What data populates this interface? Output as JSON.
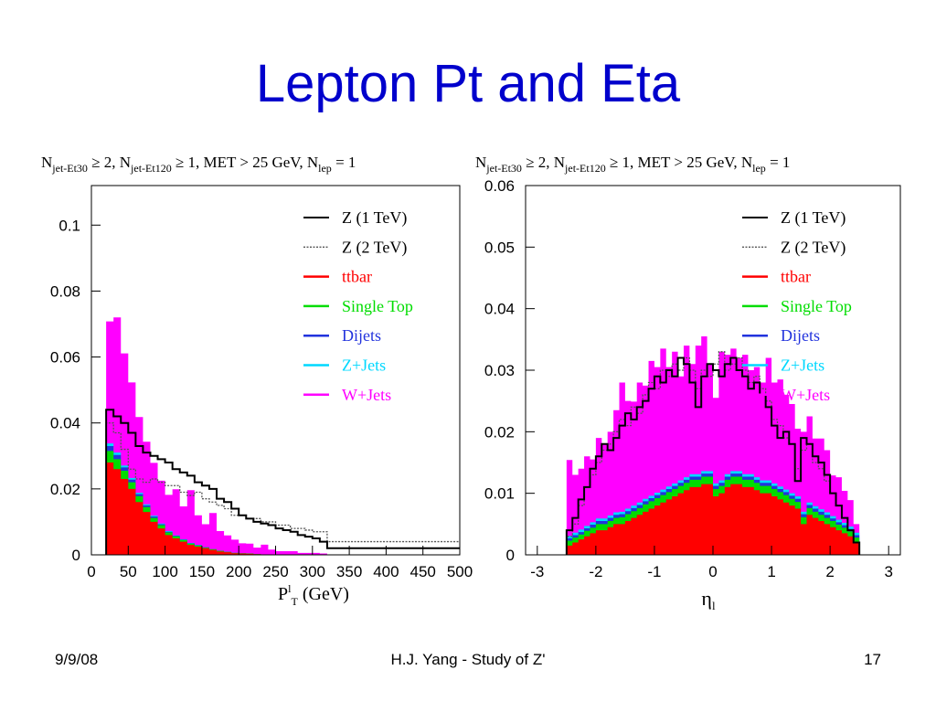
{
  "slide": {
    "title": "Lepton Pt and Eta",
    "footer_left": "9/9/08",
    "footer_center": "H.J. Yang - Study of Z'",
    "footer_right": "17"
  },
  "colors": {
    "title": "#0000cc",
    "z1": "#000000",
    "z2": "#555555",
    "ttbar": "#ff0000",
    "single_top": "#00dd00",
    "dijets": "#2233dd",
    "zjets": "#00d8ff",
    "wjets": "#ff00ff"
  },
  "chart_data": [
    {
      "type": "area",
      "header": {
        "main": "N",
        "sub1": "jet-Et30",
        "t1": " ≥ 2, N",
        "sub2": "jet-Et120",
        "t2": " ≥ 1, MET > 25 GeV, N",
        "sub3": "lep",
        "t3": " = 1"
      },
      "xlabel": {
        "main": "P",
        "sup": "l",
        "sub": "T",
        "rest": " (GeV)"
      },
      "ylabel": "",
      "xlim": [
        0,
        500
      ],
      "ylim": [
        0,
        0.112
      ],
      "xticks": [
        "0",
        "50",
        "100",
        "150",
        "200",
        "250",
        "300",
        "350",
        "400",
        "450",
        "500"
      ],
      "yticks": [
        "0",
        "0.02",
        "0.04",
        "0.06",
        "0.08",
        "0.1"
      ],
      "legend": [
        {
          "label": "Z (1 TeV)",
          "key": "z1",
          "style": "line"
        },
        {
          "label": "Z (2 TeV)",
          "key": "z2",
          "style": "dotted"
        },
        {
          "label": "ttbar",
          "key": "ttbar",
          "style": "fill"
        },
        {
          "label": "Single Top",
          "key": "single_top",
          "style": "fill"
        },
        {
          "label": "Dijets",
          "key": "dijets",
          "style": "fill"
        },
        {
          "label": "Z+Jets",
          "key": "zjets",
          "style": "fill"
        },
        {
          "label": "W+Jets",
          "key": "wjets",
          "style": "fill"
        }
      ],
      "x_edges_start": 20,
      "bin_width": 10,
      "stack": {
        "ttbar": [
          0.028,
          0.026,
          0.023,
          0.02,
          0.016,
          0.013,
          0.01,
          0.008,
          0.006,
          0.005,
          0.004,
          0.003,
          0.0025,
          0.002,
          0.0015,
          0.001,
          0.0008,
          0.0005,
          0.0004,
          0.0003,
          0.0002,
          0.0001,
          0.0001,
          0.0001,
          0.0001,
          0.0001,
          0.0001,
          0.0001,
          0.0001,
          0.0001
        ],
        "single_top": [
          0.0035,
          0.003,
          0.0025,
          0.002,
          0.0018,
          0.0015,
          0.0012,
          0.001,
          0.0008,
          0.0006,
          0.0005,
          0.0004,
          0.0003,
          0.0002,
          0.0002,
          0.0002,
          0.0001,
          0.0001,
          0.0001,
          0.0001,
          0,
          0,
          0,
          0,
          0,
          0,
          0,
          0,
          0,
          0
        ],
        "dijets": [
          0.0015,
          0.0013,
          0.001,
          0.0008,
          0.0006,
          0.0005,
          0.0004,
          0.0003,
          0.0002,
          0.0002,
          0.0001,
          0.0001,
          0.0001,
          0.0001,
          0,
          0,
          0,
          0,
          0,
          0,
          0,
          0,
          0,
          0,
          0,
          0,
          0,
          0,
          0,
          0
        ],
        "zjets": [
          0.0008,
          0.0007,
          0.0006,
          0.0005,
          0.0004,
          0.0003,
          0.0003,
          0.0002,
          0.0002,
          0.0001,
          0.0001,
          0.0001,
          0.0001,
          0,
          0,
          0,
          0,
          0,
          0,
          0,
          0,
          0,
          0,
          0,
          0,
          0,
          0,
          0,
          0,
          0
        ],
        "wjets": [
          0.037,
          0.041,
          0.034,
          0.029,
          0.023,
          0.019,
          0.016,
          0.013,
          0.011,
          0.014,
          0.01,
          0.016,
          0.009,
          0.007,
          0.011,
          0.006,
          0.005,
          0.004,
          0.003,
          0.003,
          0.002,
          0.003,
          0.0015,
          0.001,
          0.001,
          0.001,
          0.0005,
          0.0005,
          0.0005,
          0.0003
        ]
      },
      "overlays": {
        "z1": [
          0.044,
          0.042,
          0.04,
          0.037,
          0.033,
          0.031,
          0.03,
          0.029,
          0.028,
          0.026,
          0.025,
          0.024,
          0.022,
          0.021,
          0.02,
          0.017,
          0.016,
          0.014,
          0.012,
          0.011,
          0.01,
          0.0095,
          0.009,
          0.008,
          0.0075,
          0.007,
          0.006,
          0.0055,
          0.005,
          0.004
        ],
        "z2": [
          0.04,
          0.037,
          0.032,
          0.026,
          0.023,
          0.022,
          0.023,
          0.022,
          0.021,
          0.021,
          0.019,
          0.018,
          0.019,
          0.017,
          0.016,
          0.015,
          0.014,
          0.012,
          0.012,
          0.011,
          0.011,
          0.01,
          0.01,
          0.009,
          0.009,
          0.008,
          0.008,
          0.0075,
          0.007,
          0.007
        ]
      },
      "tail": {
        "z1_x_to": 500,
        "z1_y": 0.002,
        "z2_y": 0.004
      }
    },
    {
      "type": "area",
      "header": {
        "main": "N",
        "sub1": "jet-Et30",
        "t1": " ≥ 2, N",
        "sub2": "jet-Et120",
        "t2": " ≥ 1, MET > 25 GeV, N",
        "sub3": "lep",
        "t3": " = 1"
      },
      "xlabel": {
        "main": "η",
        "sub": "l"
      },
      "ylabel": "",
      "xlim": [
        -3.2,
        3.2
      ],
      "ylim": [
        0,
        0.06
      ],
      "xticks": [
        "-3",
        "-2",
        "-1",
        "0",
        "1",
        "2",
        "3"
      ],
      "yticks": [
        "0",
        "0.01",
        "0.02",
        "0.03",
        "0.04",
        "0.05",
        "0.06"
      ],
      "legend": [
        {
          "label": "Z (1 TeV)",
          "key": "z1",
          "style": "line"
        },
        {
          "label": "Z (2 TeV)",
          "key": "z2",
          "style": "dotted"
        },
        {
          "label": "ttbar",
          "key": "ttbar",
          "style": "fill"
        },
        {
          "label": "Single Top",
          "key": "single_top",
          "style": "fill"
        },
        {
          "label": "Dijets",
          "key": "dijets",
          "style": "fill"
        },
        {
          "label": "Z+Jets",
          "key": "zjets",
          "style": "fill"
        },
        {
          "label": "W+Jets",
          "key": "wjets",
          "style": "fill"
        }
      ],
      "x_edges_start": -2.5,
      "bin_width": 0.1,
      "stack": {
        "ttbar": [
          0.0015,
          0.002,
          0.0025,
          0.003,
          0.0035,
          0.004,
          0.004,
          0.0045,
          0.005,
          0.005,
          0.0055,
          0.006,
          0.0065,
          0.007,
          0.0075,
          0.008,
          0.0085,
          0.009,
          0.0095,
          0.01,
          0.0105,
          0.011,
          0.011,
          0.0115,
          0.0115,
          0.0095,
          0.01,
          0.011,
          0.0115,
          0.0115,
          0.011,
          0.011,
          0.0105,
          0.01,
          0.01,
          0.0095,
          0.009,
          0.0085,
          0.008,
          0.0075,
          0.005,
          0.0065,
          0.006,
          0.0055,
          0.005,
          0.0045,
          0.004,
          0.0035,
          0.003,
          0.002
        ],
        "single_top": [
          0.0008,
          0.0008,
          0.0008,
          0.0009,
          0.0009,
          0.001,
          0.001,
          0.001,
          0.001,
          0.0011,
          0.0011,
          0.0011,
          0.0011,
          0.0012,
          0.0012,
          0.0012,
          0.0012,
          0.0012,
          0.0012,
          0.0012,
          0.0012,
          0.0012,
          0.0012,
          0.0012,
          0.0012,
          0.0012,
          0.0012,
          0.0012,
          0.0012,
          0.0012,
          0.0012,
          0.0012,
          0.0012,
          0.0012,
          0.0012,
          0.0012,
          0.0012,
          0.0012,
          0.0011,
          0.0011,
          0.0011,
          0.0011,
          0.001,
          0.001,
          0.001,
          0.001,
          0.0009,
          0.0009,
          0.0008,
          0.0008
        ],
        "dijets": [
          0.0004,
          0.0004,
          0.0004,
          0.0004,
          0.0005,
          0.0005,
          0.0005,
          0.0005,
          0.0005,
          0.0005,
          0.0005,
          0.0005,
          0.0005,
          0.0005,
          0.0005,
          0.0005,
          0.0005,
          0.0005,
          0.0005,
          0.0005,
          0.0005,
          0.0005,
          0.0005,
          0.0005,
          0.0005,
          0.0005,
          0.0005,
          0.0005,
          0.0005,
          0.0005,
          0.0005,
          0.0005,
          0.0005,
          0.0005,
          0.0005,
          0.0005,
          0.0005,
          0.0005,
          0.0005,
          0.0005,
          0.0005,
          0.0005,
          0.0005,
          0.0005,
          0.0005,
          0.0004,
          0.0004,
          0.0004,
          0.0004,
          0.0004
        ],
        "zjets": [
          0.0004,
          0.0004,
          0.0004,
          0.0004,
          0.0004,
          0.0004,
          0.0004,
          0.0004,
          0.0004,
          0.0004,
          0.0004,
          0.0004,
          0.0004,
          0.0004,
          0.0004,
          0.0004,
          0.0004,
          0.0004,
          0.0004,
          0.0004,
          0.0004,
          0.0004,
          0.0004,
          0.0004,
          0.0004,
          0.0004,
          0.0004,
          0.0004,
          0.0004,
          0.0004,
          0.0004,
          0.0004,
          0.0004,
          0.0004,
          0.0004,
          0.0004,
          0.0004,
          0.0004,
          0.0004,
          0.0004,
          0.0004,
          0.0004,
          0.0004,
          0.0004,
          0.0004,
          0.0004,
          0.0004,
          0.0004,
          0.0004,
          0.0004
        ],
        "wjets": [
          0.0123,
          0.0094,
          0.0099,
          0.0113,
          0.0102,
          0.0131,
          0.0121,
          0.0136,
          0.0166,
          0.021,
          0.0175,
          0.0169,
          0.0195,
          0.0184,
          0.0219,
          0.0204,
          0.0229,
          0.0194,
          0.0214,
          0.0169,
          0.0214,
          0.0179,
          0.0209,
          0.0219,
          0.0174,
          0.0139,
          0.0209,
          0.0194,
          0.0199,
          0.0184,
          0.0194,
          0.0169,
          0.0179,
          0.0159,
          0.0199,
          0.0164,
          0.0174,
          0.0154,
          0.0145,
          0.011,
          0.013,
          0.014,
          0.011,
          0.0115,
          0.0101,
          0.0066,
          0.0069,
          0.0052,
          0.0043,
          0.0014
        ]
      },
      "overlays": {
        "z1": [
          0.004,
          0.006,
          0.009,
          0.011,
          0.014,
          0.016,
          0.018,
          0.017,
          0.019,
          0.021,
          0.023,
          0.022,
          0.024,
          0.025,
          0.027,
          0.029,
          0.028,
          0.03,
          0.029,
          0.032,
          0.031,
          0.028,
          0.024,
          0.029,
          0.031,
          0.03,
          0.029,
          0.031,
          0.032,
          0.03,
          0.029,
          0.027,
          0.028,
          0.026,
          0.024,
          0.021,
          0.019,
          0.02,
          0.018,
          0.012,
          0.019,
          0.018,
          0.016,
          0.015,
          0.013,
          0.01,
          0.008,
          0.006,
          0.004,
          0.002
        ],
        "z2": [
          0.003,
          0.005,
          0.008,
          0.011,
          0.013,
          0.015,
          0.017,
          0.018,
          0.02,
          0.022,
          0.021,
          0.024,
          0.023,
          0.026,
          0.028,
          0.027,
          0.03,
          0.029,
          0.031,
          0.03,
          0.032,
          0.03,
          0.027,
          0.03,
          0.029,
          0.031,
          0.033,
          0.03,
          0.031,
          0.032,
          0.03,
          0.028,
          0.029,
          0.027,
          0.025,
          0.022,
          0.021,
          0.019,
          0.018,
          0.014,
          0.017,
          0.018,
          0.015,
          0.014,
          0.012,
          0.01,
          0.008,
          0.006,
          0.004,
          0.002
        ]
      }
    }
  ]
}
